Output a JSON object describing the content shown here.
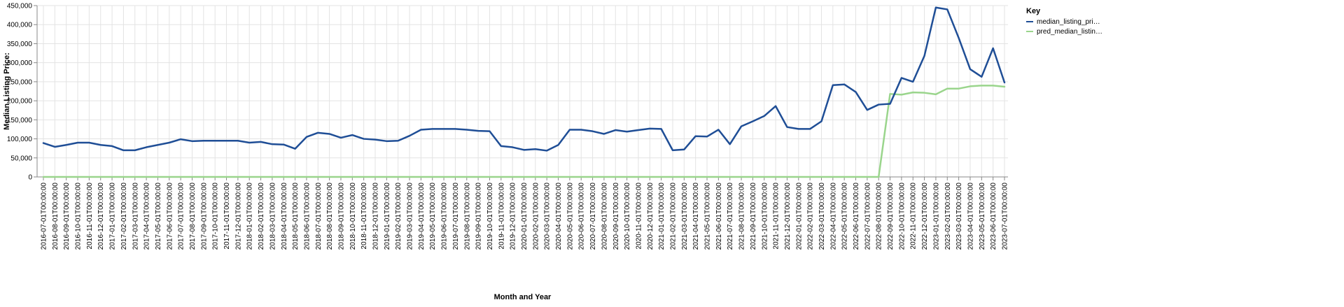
{
  "chart_data": {
    "type": "line",
    "title": "",
    "xlabel": "Month and Year",
    "ylabel": "Median Listing Price:",
    "ylim": [
      0,
      450000
    ],
    "yticks": [
      "0",
      "50,000",
      "100,000",
      "150,000",
      "200,000",
      "250,000",
      "300,000",
      "350,000",
      "400,000",
      "450,000"
    ],
    "grid": true,
    "legend": {
      "title": "Key",
      "placement": "right",
      "entries": [
        {
          "label": "median_listing_pri…",
          "color": "#1f4e96"
        },
        {
          "label": "pred_median_listin…",
          "color": "#9ad58c"
        }
      ]
    },
    "x": [
      "2016-07-01T00:00:00",
      "2016-08-01T00:00:00",
      "2016-09-01T00:00:00",
      "2016-10-01T00:00:00",
      "2016-11-01T00:00:00",
      "2016-12-01T00:00:00",
      "2017-01-01T00:00:00",
      "2017-02-01T00:00:00",
      "2017-03-01T00:00:00",
      "2017-04-01T00:00:00",
      "2017-05-01T00:00:00",
      "2017-06-01T00:00:00",
      "2017-07-01T00:00:00",
      "2017-08-01T00:00:00",
      "2017-09-01T00:00:00",
      "2017-10-01T00:00:00",
      "2017-11-01T00:00:00",
      "2017-12-01T00:00:00",
      "2018-01-01T00:00:00",
      "2018-02-01T00:00:00",
      "2018-03-01T00:00:00",
      "2018-04-01T00:00:00",
      "2018-05-01T00:00:00",
      "2018-06-01T00:00:00",
      "2018-07-01T00:00:00",
      "2018-08-01T00:00:00",
      "2018-09-01T00:00:00",
      "2018-10-01T00:00:00",
      "2018-11-01T00:00:00",
      "2018-12-01T00:00:00",
      "2019-01-01T00:00:00",
      "2019-02-01T00:00:00",
      "2019-03-01T00:00:00",
      "2019-04-01T00:00:00",
      "2019-05-01T00:00:00",
      "2019-06-01T00:00:00",
      "2019-07-01T00:00:00",
      "2019-08-01T00:00:00",
      "2019-09-01T00:00:00",
      "2019-10-01T00:00:00",
      "2019-11-01T00:00:00",
      "2019-12-01T00:00:00",
      "2020-01-01T00:00:00",
      "2020-02-01T00:00:00",
      "2020-03-01T00:00:00",
      "2020-04-01T00:00:00",
      "2020-05-01T00:00:00",
      "2020-06-01T00:00:00",
      "2020-07-01T00:00:00",
      "2020-08-01T00:00:00",
      "2020-09-01T00:00:00",
      "2020-10-01T00:00:00",
      "2020-11-01T00:00:00",
      "2020-12-01T00:00:00",
      "2021-01-01T00:00:00",
      "2021-02-01T00:00:00",
      "2021-03-01T00:00:00",
      "2021-04-01T00:00:00",
      "2021-05-01T00:00:00",
      "2021-06-01T00:00:00",
      "2021-07-01T00:00:00",
      "2021-08-01T00:00:00",
      "2021-09-01T00:00:00",
      "2021-10-01T00:00:00",
      "2021-11-01T00:00:00",
      "2021-12-01T00:00:00",
      "2022-01-01T00:00:00",
      "2022-02-01T00:00:00",
      "2022-03-01T00:00:00",
      "2022-04-01T00:00:00",
      "2022-05-01T00:00:00",
      "2022-06-01T00:00:00",
      "2022-07-01T00:00:00",
      "2022-08-01T00:00:00",
      "2022-09-01T00:00:00",
      "2022-10-01T00:00:00",
      "2022-11-01T00:00:00",
      "2022-12-01T00:00:00",
      "2023-01-01T00:00:00",
      "2023-02-01T00:00:00",
      "2023-03-01T00:00:00",
      "2023-04-01T00:00:00",
      "2023-05-01T00:00:00",
      "2023-06-01T00:00:00",
      "2023-07-01T00:00:00"
    ],
    "series": [
      {
        "name": "median_listing_pri…",
        "color": "#1f4e96",
        "values": [
          89000,
          79000,
          84000,
          90000,
          90000,
          84000,
          81000,
          70000,
          70000,
          78000,
          84000,
          90000,
          99000,
          94000,
          95000,
          95000,
          95000,
          95000,
          90000,
          92000,
          86000,
          85000,
          74000,
          105000,
          116000,
          113000,
          103000,
          110000,
          100000,
          98000,
          94000,
          95000,
          108000,
          124000,
          126000,
          126000,
          126000,
          124000,
          121000,
          120000,
          81000,
          78000,
          71000,
          73000,
          69000,
          84000,
          124000,
          124000,
          120000,
          113000,
          123000,
          119000,
          123000,
          127000,
          126000,
          70000,
          72000,
          107000,
          106000,
          124000,
          86000,
          133000,
          146000,
          160000,
          186000,
          131000,
          126000,
          126000,
          146000,
          241000,
          243000,
          223000,
          176000,
          190000,
          192000,
          260000,
          250000,
          318000,
          445000,
          440000,
          365000,
          283000,
          263000,
          338000,
          248000
        ]
      },
      {
        "name": "pred_median_listin…",
        "color": "#9ad58c",
        "values": [
          0,
          0,
          0,
          0,
          0,
          0,
          0,
          0,
          0,
          0,
          0,
          0,
          0,
          0,
          0,
          0,
          0,
          0,
          0,
          0,
          0,
          0,
          0,
          0,
          0,
          0,
          0,
          0,
          0,
          0,
          0,
          0,
          0,
          0,
          0,
          0,
          0,
          0,
          0,
          0,
          0,
          0,
          0,
          0,
          0,
          0,
          0,
          0,
          0,
          0,
          0,
          0,
          0,
          0,
          0,
          0,
          0,
          0,
          0,
          0,
          0,
          0,
          0,
          0,
          0,
          0,
          0,
          0,
          0,
          0,
          0,
          0,
          0,
          0,
          218000,
          216000,
          222000,
          221000,
          217000,
          232000,
          232000,
          238000,
          240000,
          240000,
          237000
        ]
      }
    ]
  }
}
